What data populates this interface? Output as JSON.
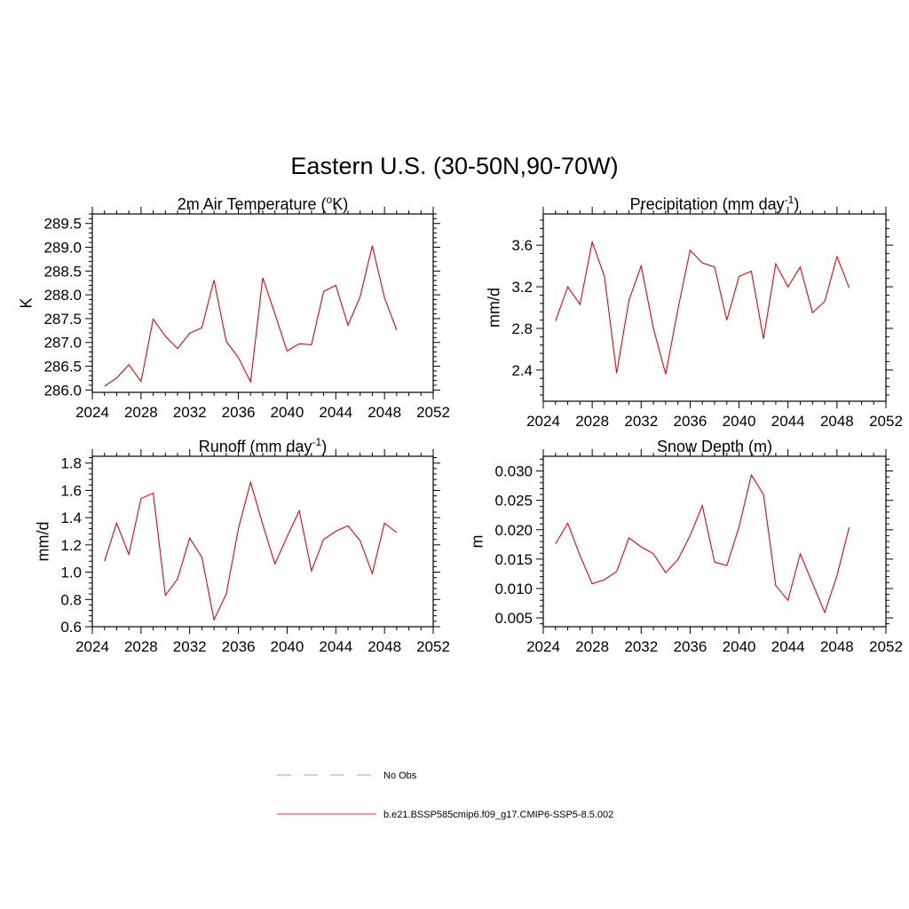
{
  "figure": {
    "title": "Eastern U.S. (30-50N,90-70W)"
  },
  "legend": {
    "entries": [
      {
        "label": "No Obs",
        "style": "dashed",
        "color": "#9999ee"
      },
      {
        "label": "b.e21.BSSP585cmip6.f09_g17.CMIP6-SSP5-8.5.002",
        "style": "solid",
        "color": "#ee3333"
      }
    ]
  },
  "chart_data": [
    {
      "id": "temp",
      "type": "line",
      "title": "2m Air Temperature (",
      "title_sup": "o",
      "title_after": "K)",
      "ylabel": "K",
      "xlim": [
        2024,
        2052
      ],
      "ylim": [
        285.95,
        289.7
      ],
      "xticks": [
        2024,
        2028,
        2032,
        2036,
        2040,
        2044,
        2048,
        2052
      ],
      "xtick_labels": [
        "2024",
        "2028",
        "2032",
        "2036",
        "2040",
        "2044",
        "2048",
        "2052"
      ],
      "yticks": [
        286.0,
        286.5,
        287.0,
        287.5,
        288.0,
        288.5,
        289.0,
        289.5
      ],
      "ytick_labels": [
        "286.0",
        "286.5",
        "287.0",
        "287.5",
        "288.0",
        "288.5",
        "289.0",
        "289.5"
      ],
      "line_color": "#e8000b",
      "x": [
        2025,
        2026,
        2027,
        2028,
        2029,
        2030,
        2031,
        2032,
        2033,
        2034,
        2035,
        2036,
        2037,
        2038,
        2039,
        2040,
        2041,
        2042,
        2043,
        2044,
        2045,
        2046,
        2047,
        2048,
        2049
      ],
      "y": [
        286.08,
        286.25,
        286.53,
        286.18,
        287.49,
        287.13,
        286.87,
        287.19,
        287.31,
        288.31,
        287.02,
        286.68,
        286.17,
        288.36,
        287.6,
        286.82,
        286.97,
        286.95,
        288.07,
        288.2,
        287.36,
        287.96,
        289.03,
        287.94,
        287.26
      ]
    },
    {
      "id": "precip",
      "type": "line",
      "title": "Precipitation (mm day",
      "title_sup": "-1",
      "title_after": ")",
      "ylabel": "mm/d",
      "xlim": [
        2024,
        2052
      ],
      "ylim": [
        2.1,
        3.9
      ],
      "xticks": [
        2024,
        2028,
        2032,
        2036,
        2040,
        2044,
        2048,
        2052
      ],
      "xtick_labels": [
        "2024",
        "2028",
        "2032",
        "2036",
        "2040",
        "2044",
        "2048",
        "2052"
      ],
      "yticks": [
        2.4,
        2.8,
        3.2,
        3.6
      ],
      "ytick_labels": [
        "2.4",
        "2.8",
        "3.2",
        "3.6"
      ],
      "line_color": "#e8000b",
      "x": [
        2025,
        2026,
        2027,
        2028,
        2029,
        2030,
        2031,
        2032,
        2033,
        2034,
        2035,
        2036,
        2037,
        2038,
        2039,
        2040,
        2041,
        2042,
        2043,
        2044,
        2045,
        2046,
        2047,
        2048,
        2049
      ],
      "y": [
        2.87,
        3.2,
        3.03,
        3.63,
        3.3,
        2.37,
        3.07,
        3.4,
        2.8,
        2.36,
        2.98,
        3.55,
        3.43,
        3.39,
        2.88,
        3.3,
        3.35,
        2.7,
        3.42,
        3.2,
        3.39,
        2.95,
        3.06,
        3.49,
        3.19
      ]
    },
    {
      "id": "runoff",
      "type": "line",
      "title": "Runoff (mm day",
      "title_sup": "-1",
      "title_after": ")",
      "ylabel": "mm/d",
      "xlim": [
        2024,
        2052
      ],
      "ylim": [
        0.6,
        1.85
      ],
      "xticks": [
        2024,
        2028,
        2032,
        2036,
        2040,
        2044,
        2048,
        2052
      ],
      "xtick_labels": [
        "2024",
        "2028",
        "2032",
        "2036",
        "2040",
        "2044",
        "2048",
        "2052"
      ],
      "yticks": [
        0.6,
        0.8,
        1.0,
        1.2,
        1.4,
        1.6,
        1.8
      ],
      "ytick_labels": [
        "0.6",
        "0.8",
        "1.0",
        "1.2",
        "1.4",
        "1.6",
        "1.8"
      ],
      "line_color": "#e8000b",
      "x": [
        2025,
        2026,
        2027,
        2028,
        2029,
        2030,
        2031,
        2032,
        2033,
        2034,
        2035,
        2036,
        2037,
        2038,
        2039,
        2040,
        2041,
        2042,
        2043,
        2044,
        2045,
        2046,
        2047,
        2048,
        2049
      ],
      "y": [
        1.08,
        1.36,
        1.13,
        1.54,
        1.58,
        0.83,
        0.95,
        1.25,
        1.11,
        0.65,
        0.84,
        1.32,
        1.66,
        1.35,
        1.06,
        1.26,
        1.45,
        1.01,
        1.24,
        1.3,
        1.34,
        1.23,
        0.99,
        1.36,
        1.29
      ]
    },
    {
      "id": "snow",
      "type": "line",
      "title": "Snow Depth (m)",
      "title_sup": "",
      "title_after": "",
      "ylabel": "m",
      "xlim": [
        2024,
        2052
      ],
      "ylim": [
        0.0035,
        0.0325
      ],
      "xticks": [
        2024,
        2028,
        2032,
        2036,
        2040,
        2044,
        2048,
        2052
      ],
      "xtick_labels": [
        "2024",
        "2028",
        "2032",
        "2036",
        "2040",
        "2044",
        "2048",
        "2052"
      ],
      "yticks": [
        0.005,
        0.01,
        0.015,
        0.02,
        0.025,
        0.03
      ],
      "ytick_labels": [
        "0.005",
        "0.010",
        "0.015",
        "0.020",
        "0.025",
        "0.030"
      ],
      "line_color": "#e8000b",
      "x": [
        2025,
        2026,
        2027,
        2028,
        2029,
        2030,
        2031,
        2032,
        2033,
        2034,
        2035,
        2036,
        2037,
        2038,
        2039,
        2040,
        2041,
        2042,
        2043,
        2044,
        2045,
        2046,
        2047,
        2048,
        2049
      ],
      "y": [
        0.0176,
        0.0211,
        0.0156,
        0.0108,
        0.0115,
        0.0129,
        0.0186,
        0.0171,
        0.0159,
        0.0127,
        0.0149,
        0.019,
        0.0241,
        0.0145,
        0.0139,
        0.0205,
        0.0293,
        0.026,
        0.0105,
        0.008,
        0.0159,
        0.0109,
        0.0059,
        0.0122,
        0.0204
      ]
    }
  ]
}
